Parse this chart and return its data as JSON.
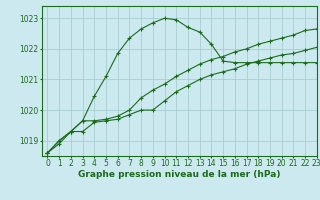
{
  "x": [
    0,
    1,
    2,
    3,
    4,
    5,
    6,
    7,
    8,
    9,
    10,
    11,
    12,
    13,
    14,
    15,
    16,
    17,
    18,
    19,
    20,
    21,
    22,
    23
  ],
  "series1": [
    1018.6,
    1019.0,
    1019.3,
    1019.65,
    1020.45,
    1021.1,
    1021.85,
    1022.35,
    1022.65,
    1022.85,
    1023.0,
    1022.95,
    1022.7,
    1022.55,
    1022.15,
    1021.6,
    1021.55,
    1021.55,
    1021.55,
    1021.55,
    1021.55,
    1021.55,
    1021.55,
    1021.55
  ],
  "series2": [
    1018.6,
    1019.0,
    1019.3,
    1019.65,
    1019.65,
    1019.7,
    1019.8,
    1020.0,
    1020.4,
    1020.65,
    1020.85,
    1021.1,
    1021.3,
    1021.5,
    1021.65,
    1021.75,
    1021.9,
    1022.0,
    1022.15,
    1022.25,
    1022.35,
    1022.45,
    1022.6,
    1022.65
  ],
  "series3": [
    1018.6,
    1018.9,
    1019.3,
    1019.3,
    1019.6,
    1019.65,
    1019.7,
    1019.85,
    1020.0,
    1020.0,
    1020.3,
    1020.6,
    1020.8,
    1021.0,
    1021.15,
    1021.25,
    1021.35,
    1021.5,
    1021.6,
    1021.7,
    1021.8,
    1021.85,
    1021.95,
    1022.05
  ],
  "ylim": [
    1018.5,
    1023.4
  ],
  "yticks": [
    1019,
    1020,
    1021,
    1022,
    1023
  ],
  "xlim": [
    -0.5,
    23
  ],
  "line_color": "#1a6b1a",
  "bg_color": "#cde9f0",
  "grid_color": "#a0c8cc",
  "xlabel": "Graphe pression niveau de la mer (hPa)",
  "xlabel_fontsize": 6.5,
  "tick_fontsize": 5.5,
  "marker": "+"
}
